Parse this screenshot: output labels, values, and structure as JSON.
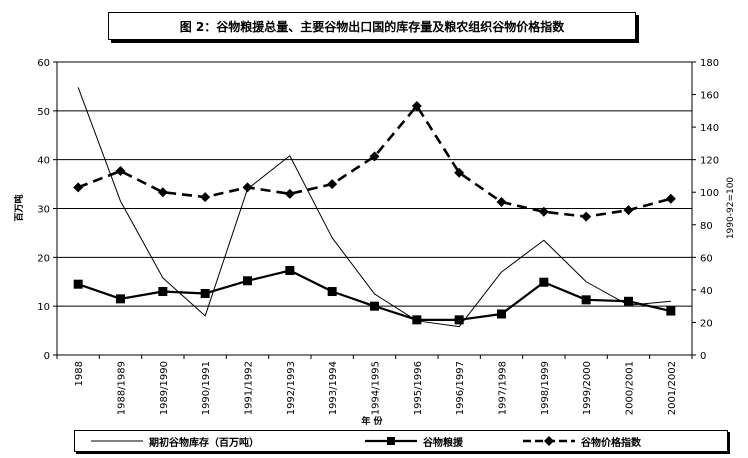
{
  "chart_data": {
    "type": "line",
    "title": "图 2：谷物粮援总量、主要谷物出口国的库存量及粮农组织谷物价格指数",
    "categories": [
      "1988",
      "1988/1989",
      "1989/1990",
      "1990/1991",
      "1991/1992",
      "1992/1993",
      "1993/1994",
      "1994/1995",
      "1995/1996",
      "1996/1997",
      "1997/1998",
      "1998/1999",
      "1999/2000",
      "2000/2001",
      "2001/2002"
    ],
    "xlabel": "年 份",
    "ylabel_left": "百万吨",
    "ylabel_right": "1990-92=100",
    "ylim_left": [
      0,
      60
    ],
    "ylim_right": [
      0,
      180
    ],
    "yticks_left": [
      "0",
      "10",
      "20",
      "30",
      "40",
      "50",
      "60"
    ],
    "yticks_right": [
      "0",
      "20",
      "40",
      "60",
      "80",
      "100",
      "120",
      "140",
      "160",
      "180"
    ],
    "grid": "horizontal",
    "legend_position": "bottom",
    "series": [
      {
        "name": "期初谷物库存（百万吨）",
        "axis": "left",
        "style": "thin-solid",
        "values": [
          54.8,
          31.5,
          15.8,
          8.0,
          34.0,
          40.8,
          24.0,
          12.5,
          7.0,
          5.8,
          17.0,
          23.5,
          15.0,
          10.2,
          11.0
        ]
      },
      {
        "name": "谷物粮援",
        "axis": "left",
        "style": "thick-solid-square",
        "values": [
          14.5,
          11.5,
          13.0,
          12.6,
          15.2,
          17.3,
          13.0,
          10.0,
          7.2,
          7.2,
          8.4,
          14.9,
          11.3,
          11.0,
          9.0
        ]
      },
      {
        "name": "谷物价格指数",
        "axis": "right",
        "style": "dashed-diamond",
        "values": [
          103,
          113,
          100,
          97,
          103,
          99,
          105,
          122,
          153,
          112,
          94,
          88,
          85,
          89,
          96
        ]
      }
    ]
  }
}
